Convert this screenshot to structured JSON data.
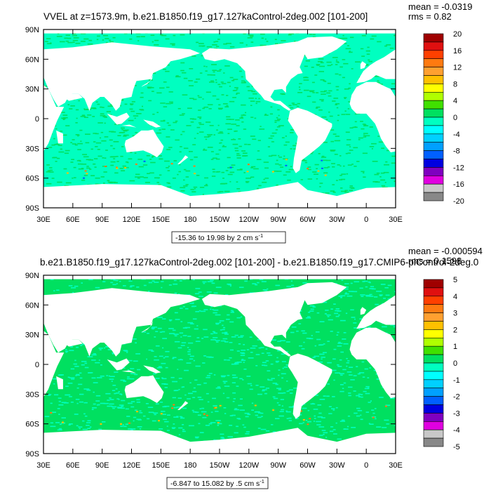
{
  "chart_data": [
    {
      "type": "heatmap",
      "title": "VVEL at z=1573.9m, b.e21.B1850.f19_g17.127kaControl-2deg.002 [101-200]",
      "stats": [
        "mean = -0.0319",
        "rms = 0.82"
      ],
      "x_tick_labels": [
        "30E",
        "60E",
        "90E",
        "120E",
        "150E",
        "180",
        "150W",
        "120W",
        "90W",
        "60W",
        "30W",
        "0",
        "30E"
      ],
      "y_tick_labels": [
        "90N",
        "60N",
        "30N",
        "0",
        "30S",
        "60S",
        "90S"
      ],
      "xlim": [
        30,
        390
      ],
      "ylim": [
        -90,
        90
      ],
      "range_note": "-15.36 to 19.98 by 2 cm s",
      "range_unit_exp": "-1",
      "colorbar": {
        "labels": [
          "20",
          "16",
          "12",
          "8",
          "4",
          "0",
          "-4",
          "-8",
          "-12",
          "-16",
          "-20"
        ],
        "colors": [
          "#a00000",
          "#e01010",
          "#ff4000",
          "#ff7a10",
          "#ffa030",
          "#ffc000",
          "#ffff00",
          "#b0ff00",
          "#40e000",
          "#00e060",
          "#00ffc0",
          "#00ffff",
          "#00d0ff",
          "#00a0ff",
          "#0060ff",
          "#0000e0",
          "#8000c0",
          "#e000e0",
          "#c8c8c8",
          "#888888"
        ]
      },
      "land_color": "#ffffff",
      "field_colors": {
        "dominant": "#00ffc0",
        "secondary": "#00e060",
        "accents": [
          "#ffc000",
          "#ff7a10",
          "#0060ff"
        ]
      }
    },
    {
      "type": "heatmap",
      "title": "b.e21.B1850.f19_g17.127kaControl-2deg.002 [101-200] - b.e21.B1850.f19_g17.CMIP6-piControl-2deg.0",
      "stats": [
        "mean = -0.000594",
        "rms = 0.1598"
      ],
      "x_tick_labels": [
        "30E",
        "60E",
        "90E",
        "120E",
        "150E",
        "180",
        "150W",
        "120W",
        "90W",
        "60W",
        "30W",
        "0",
        "30E"
      ],
      "y_tick_labels": [
        "90N",
        "60N",
        "30N",
        "0",
        "30S",
        "60S",
        "90S"
      ],
      "xlim": [
        30,
        390
      ],
      "ylim": [
        -90,
        90
      ],
      "range_note": "-6.847 to 15.082 by .5 cm s",
      "range_unit_exp": "-1",
      "colorbar": {
        "labels": [
          "5",
          "4",
          "3",
          "2",
          "1",
          "0",
          "-1",
          "-2",
          "-3",
          "-4",
          "-5"
        ],
        "colors": [
          "#a00000",
          "#e01010",
          "#ff4000",
          "#ff7a10",
          "#ffa030",
          "#ffc000",
          "#ffff00",
          "#b0ff00",
          "#40e000",
          "#00e060",
          "#00ffc0",
          "#00ffff",
          "#00d0ff",
          "#00a0ff",
          "#0060ff",
          "#0000e0",
          "#8000c0",
          "#e000e0",
          "#c8c8c8",
          "#888888"
        ]
      },
      "land_color": "#ffffff",
      "field_colors": {
        "dominant": "#00e060",
        "secondary": "#00ffc0",
        "accents": [
          "#ffc000",
          "#ff7a10"
        ]
      }
    }
  ]
}
